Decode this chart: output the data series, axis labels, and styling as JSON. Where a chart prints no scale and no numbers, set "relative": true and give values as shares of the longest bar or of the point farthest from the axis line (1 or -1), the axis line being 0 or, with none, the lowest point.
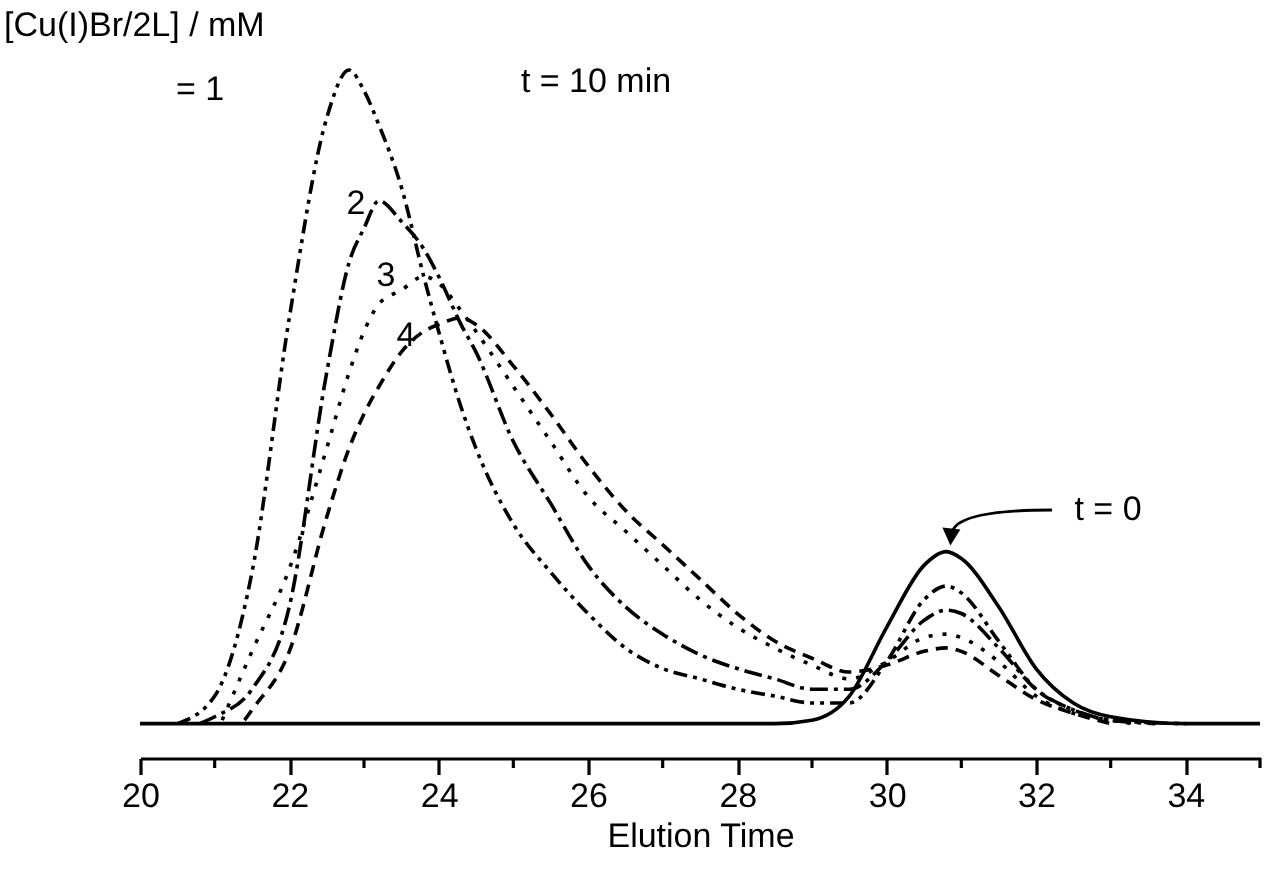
{
  "chart_data": {
    "type": "line",
    "relative": true,
    "xlabel": "Elution Time",
    "xlim": [
      20,
      35
    ],
    "xticks": [
      20,
      {
        "value": 21,
        "label": null
      },
      22,
      {
        "value": 23,
        "label": null
      },
      24,
      {
        "value": 25,
        "label": null
      },
      26,
      {
        "value": 27,
        "label": null
      },
      28,
      {
        "value": 29,
        "label": null
      },
      30,
      {
        "value": 31,
        "label": null
      },
      32,
      {
        "value": 33,
        "label": null
      },
      34,
      {
        "value": 35,
        "label": null
      }
    ],
    "tick_labels": "x",
    "grid": false,
    "x": [
      20.5,
      21,
      21.5,
      22,
      22.5,
      22.8,
      23,
      23.2,
      23.5,
      23.8,
      24,
      24.3,
      24.5,
      25,
      25.5,
      26,
      26.5,
      27,
      27.5,
      28,
      28.5,
      29,
      29.5,
      30,
      30.5,
      30.8,
      31,
      31.5,
      32,
      32.5,
      33,
      34
    ],
    "series": [
      {
        "color": "#000000",
        "line_style": "solid",
        "x": [
          20,
          20.5,
          21,
          21.5,
          22,
          22.5,
          22.8,
          23,
          23.2,
          23.5,
          23.8,
          24,
          24.3,
          24.5,
          25,
          25.5,
          26,
          26.5,
          27,
          27.5,
          28,
          28.5,
          29,
          29.5,
          30,
          30.5,
          30.8,
          31,
          31.5,
          32,
          32.5,
          33,
          34,
          35
        ],
        "values": [
          0.05,
          0.05,
          0.05,
          0.05,
          0.05,
          0.05,
          0.05,
          0.05,
          0.05,
          0.05,
          0.05,
          0.05,
          0.05,
          0.05,
          0.05,
          0.05,
          0.05,
          0.05,
          0.05,
          0.05,
          0.05,
          0.05,
          0.055,
          0.09,
          0.19,
          0.28,
          0.3,
          0.29,
          0.22,
          0.13,
          0.08,
          0.06,
          0.05,
          0.05
        ]
      },
      {
        "color": "#000000",
        "line_style": "dashdotdot",
        "values": [
          0.05,
          0.09,
          0.27,
          0.64,
          0.93,
          1.0,
          0.97,
          0.92,
          0.83,
          0.7,
          0.62,
          0.51,
          0.45,
          0.34,
          0.27,
          0.21,
          0.16,
          0.13,
          0.115,
          0.1,
          0.09,
          0.08,
          0.08,
          0.14,
          0.23,
          0.25,
          0.24,
          0.17,
          0.1,
          0.07,
          0.055,
          0.05
        ]
      },
      {
        "color": "#000000",
        "line_style": "dashdot",
        "x": [
          20.8,
          21,
          21.5,
          22,
          22.5,
          22.8,
          23,
          23.2,
          23.5,
          23.8,
          24,
          24.3,
          24.5,
          25,
          25.5,
          26,
          26.5,
          27,
          27.5,
          28,
          28.5,
          29,
          29.5,
          30,
          30.5,
          30.8,
          31,
          31.5,
          32,
          32.5,
          33,
          33.6
        ],
        "values": [
          0.05,
          0.06,
          0.1,
          0.22,
          0.56,
          0.72,
          0.77,
          0.81,
          0.78,
          0.74,
          0.7,
          0.63,
          0.59,
          0.46,
          0.37,
          0.28,
          0.22,
          0.18,
          0.15,
          0.13,
          0.115,
          0.1,
          0.1,
          0.14,
          0.2,
          0.215,
          0.21,
          0.16,
          0.1,
          0.07,
          0.055,
          0.05
        ]
      },
      {
        "color": "#000000",
        "line_style": "dotted",
        "x": [
          21.1,
          21.5,
          22,
          22.5,
          22.8,
          23,
          23.2,
          23.5,
          23.8,
          24,
          24.3,
          24.5,
          25,
          25.5,
          26,
          26.5,
          27,
          27.5,
          28,
          28.5,
          29,
          29.5,
          30,
          30.5,
          30.8,
          31,
          31.5,
          32,
          32.5,
          33,
          33.3
        ],
        "values": [
          0.055,
          0.155,
          0.275,
          0.45,
          0.56,
          0.62,
          0.66,
          0.68,
          0.7,
          0.69,
          0.65,
          0.62,
          0.54,
          0.46,
          0.38,
          0.33,
          0.28,
          0.23,
          0.19,
          0.16,
          0.135,
          0.115,
          0.14,
          0.175,
          0.18,
          0.175,
          0.14,
          0.09,
          0.065,
          0.055,
          0.05
        ]
      },
      {
        "color": "#000000",
        "line_style": "dashed",
        "x": [
          21.4,
          21.5,
          22,
          22.5,
          22.8,
          23,
          23.2,
          23.5,
          23.8,
          24,
          24.3,
          24.5,
          25,
          25.5,
          26,
          26.5,
          27,
          27.5,
          28,
          28.5,
          29,
          29.5,
          30,
          30.5,
          30.8,
          31,
          31.5,
          32,
          32.5,
          33
        ],
        "values": [
          0.055,
          0.07,
          0.155,
          0.35,
          0.45,
          0.5,
          0.54,
          0.59,
          0.62,
          0.63,
          0.64,
          0.63,
          0.57,
          0.5,
          0.425,
          0.36,
          0.31,
          0.26,
          0.21,
          0.17,
          0.145,
          0.125,
          0.135,
          0.155,
          0.16,
          0.155,
          0.12,
          0.085,
          0.065,
          0.05
        ]
      }
    ],
    "annotations": [
      "[Cu(I)Br/2L] / mM",
      "t = 10 min",
      "= 1",
      "2",
      "3",
      "4",
      "t = 0"
    ]
  }
}
